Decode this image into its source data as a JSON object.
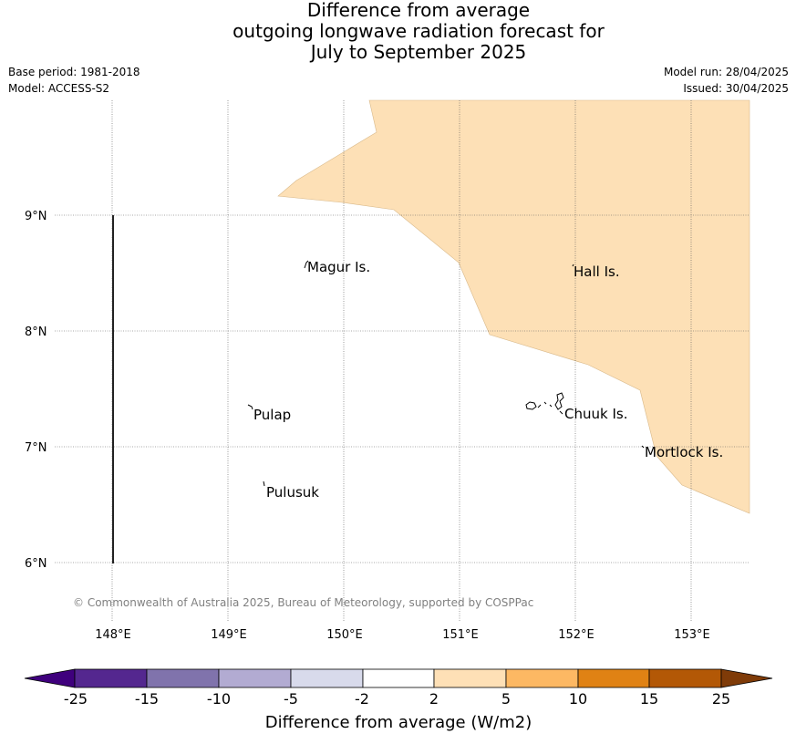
{
  "title": {
    "line1": "Difference from average",
    "line2": "outgoing longwave radiation forecast for",
    "line3": "July to September 2025"
  },
  "meta": {
    "base_period": "Base period: 1981-2018",
    "model": "Model: ACCESS-S2",
    "model_run": "Model run: 28/04/2025",
    "issued": "Issued: 30/04/2025"
  },
  "map": {
    "latitude_ticks": [
      "9°N",
      "8°N",
      "7°N",
      "6°N"
    ],
    "longitude_ticks": [
      "148°E",
      "149°E",
      "150°E",
      "151°E",
      "152°E",
      "153°E"
    ],
    "place_labels": {
      "magur": "Magur Is.",
      "hall": "Hall Is.",
      "pulap": "Pulap",
      "chuuk": "Chuuk Is.",
      "mortlock": "Mortlock Is.",
      "pulusuk": "Pulusuk"
    },
    "copyright": "© Commonwealth of Australia 2025, Bureau of Meteorology, supported by COSPPac",
    "anomaly_fill_color": "#fde0b6"
  },
  "colorbar": {
    "title": "Difference from average (W/m2)",
    "ticks": [
      "-25",
      "-15",
      "-10",
      "-5",
      "-2",
      "2",
      "5",
      "10",
      "15",
      "25"
    ],
    "colors": [
      "#3f007d",
      "#54278f",
      "#8073ac",
      "#b2abd2",
      "#d8daeb",
      "#ffffff",
      "#fee0b6",
      "#fdb863",
      "#e08214",
      "#b35806",
      "#7f3b08"
    ]
  }
}
